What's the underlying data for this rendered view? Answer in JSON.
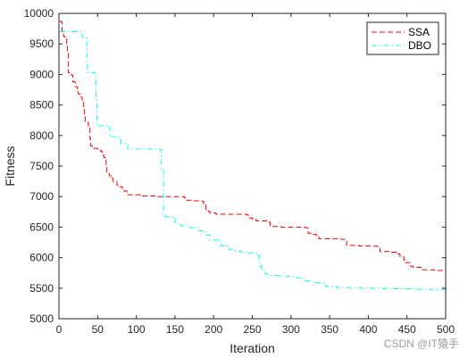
{
  "watermark": "CSDN @IT猿手",
  "chart_data": {
    "type": "line",
    "title": "",
    "xlabel": "Iteration",
    "ylabel": "Fitness",
    "xlim": [
      0,
      500
    ],
    "ylim": [
      5000,
      10000
    ],
    "xticks": [
      0,
      50,
      100,
      150,
      200,
      250,
      300,
      350,
      400,
      450,
      500
    ],
    "yticks": [
      5000,
      5500,
      6000,
      6500,
      7000,
      7500,
      8000,
      8500,
      9000,
      9500,
      10000
    ],
    "grid": false,
    "legend_position": "top-right",
    "series": [
      {
        "name": "SSA",
        "color": "#ff0000",
        "dash": "dashed",
        "points": [
          [
            1,
            9870
          ],
          [
            3,
            9860
          ],
          [
            4,
            9700
          ],
          [
            6,
            9620
          ],
          [
            8,
            9610
          ],
          [
            10,
            9500
          ],
          [
            11,
            9350
          ],
          [
            12,
            9030
          ],
          [
            16,
            8990
          ],
          [
            18,
            8880
          ],
          [
            21,
            8800
          ],
          [
            24,
            8760
          ],
          [
            25,
            8680
          ],
          [
            27,
            8630
          ],
          [
            30,
            8580
          ],
          [
            32,
            8420
          ],
          [
            33,
            8350
          ],
          [
            34,
            8220
          ],
          [
            38,
            8150
          ],
          [
            40,
            7950
          ],
          [
            41,
            7830
          ],
          [
            43,
            7810
          ],
          [
            45,
            7790
          ],
          [
            50,
            7760
          ],
          [
            54,
            7740
          ],
          [
            56,
            7680
          ],
          [
            58,
            7640
          ],
          [
            61,
            7510
          ],
          [
            62,
            7380
          ],
          [
            65,
            7340
          ],
          [
            68,
            7300
          ],
          [
            70,
            7250
          ],
          [
            75,
            7190
          ],
          [
            79,
            7160
          ],
          [
            82,
            7130
          ],
          [
            84,
            7090
          ],
          [
            88,
            7030
          ],
          [
            105,
            7020
          ],
          [
            106,
            7010
          ],
          [
            126,
            7000
          ],
          [
            162,
            6980
          ],
          [
            165,
            6940
          ],
          [
            173,
            6930
          ],
          [
            185,
            6920
          ],
          [
            187,
            6880
          ],
          [
            190,
            6780
          ],
          [
            193,
            6760
          ],
          [
            195,
            6730
          ],
          [
            203,
            6710
          ],
          [
            243,
            6700
          ],
          [
            245,
            6650
          ],
          [
            250,
            6630
          ],
          [
            255,
            6600
          ],
          [
            270,
            6580
          ],
          [
            273,
            6510
          ],
          [
            287,
            6500
          ],
          [
            318,
            6490
          ],
          [
            322,
            6400
          ],
          [
            326,
            6380
          ],
          [
            333,
            6360
          ],
          [
            336,
            6310
          ],
          [
            365,
            6300
          ],
          [
            372,
            6200
          ],
          [
            388,
            6190
          ],
          [
            412,
            6180
          ],
          [
            415,
            6100
          ],
          [
            430,
            6090
          ],
          [
            438,
            6060
          ],
          [
            441,
            6010
          ],
          [
            446,
            5960
          ],
          [
            448,
            5920
          ],
          [
            454,
            5860
          ],
          [
            458,
            5840
          ],
          [
            470,
            5800
          ],
          [
            487,
            5790
          ],
          [
            500,
            5780
          ]
        ]
      },
      {
        "name": "DBO",
        "color": "#00ffff",
        "dash": "dash-dot",
        "points": [
          [
            1,
            9700
          ],
          [
            28,
            9680
          ],
          [
            30,
            9610
          ],
          [
            34,
            9600
          ],
          [
            36,
            9180
          ],
          [
            37,
            9030
          ],
          [
            47,
            9020
          ],
          [
            48,
            8600
          ],
          [
            49,
            8160
          ],
          [
            64,
            8140
          ],
          [
            66,
            7980
          ],
          [
            78,
            7970
          ],
          [
            80,
            7870
          ],
          [
            88,
            7860
          ],
          [
            89,
            7780
          ],
          [
            130,
            7770
          ],
          [
            132,
            7450
          ],
          [
            135,
            6700
          ],
          [
            138,
            6670
          ],
          [
            146,
            6660
          ],
          [
            150,
            6560
          ],
          [
            158,
            6520
          ],
          [
            170,
            6490
          ],
          [
            180,
            6440
          ],
          [
            190,
            6370
          ],
          [
            195,
            6290
          ],
          [
            206,
            6260
          ],
          [
            210,
            6190
          ],
          [
            220,
            6130
          ],
          [
            228,
            6110
          ],
          [
            235,
            6090
          ],
          [
            245,
            6070
          ],
          [
            255,
            6030
          ],
          [
            259,
            5950
          ],
          [
            260,
            5860
          ],
          [
            262,
            5800
          ],
          [
            267,
            5730
          ],
          [
            270,
            5710
          ],
          [
            285,
            5690
          ],
          [
            305,
            5670
          ],
          [
            313,
            5660
          ],
          [
            318,
            5620
          ],
          [
            328,
            5590
          ],
          [
            345,
            5530
          ],
          [
            360,
            5510
          ],
          [
            390,
            5500
          ],
          [
            420,
            5490
          ],
          [
            460,
            5480
          ],
          [
            500,
            5490
          ]
        ]
      }
    ]
  }
}
